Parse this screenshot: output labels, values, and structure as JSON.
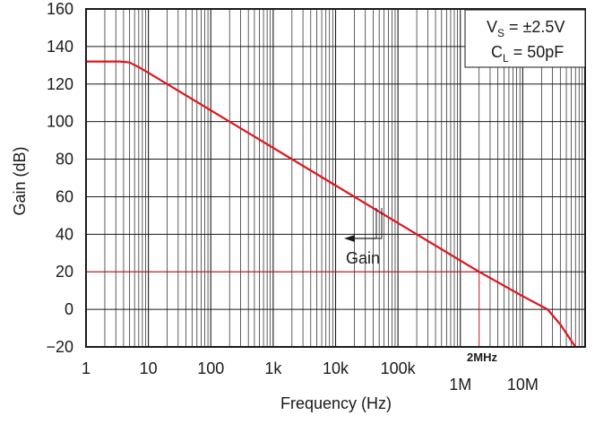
{
  "chart_data": {
    "type": "line",
    "xscale": "log",
    "xlim": [
      1,
      100000000
    ],
    "ylim": [
      -20,
      160
    ],
    "xlabel": "Frequency (Hz)",
    "ylabel": "Gain (dB)",
    "x_ticks": [
      {
        "value": 1,
        "label": "1"
      },
      {
        "value": 10,
        "label": "10"
      },
      {
        "value": 100,
        "label": "100"
      },
      {
        "value": 1000,
        "label": "1k"
      },
      {
        "value": 10000,
        "label": "10k"
      },
      {
        "value": 100000,
        "label": "100k"
      },
      {
        "value": 1000000,
        "label": "1M"
      },
      {
        "value": 10000000,
        "label": "10M"
      }
    ],
    "y_ticks": [
      {
        "value": 160,
        "label": "160"
      },
      {
        "value": 140,
        "label": "140"
      },
      {
        "value": 120,
        "label": "120"
      },
      {
        "value": 100,
        "label": "100"
      },
      {
        "value": 80,
        "label": "80"
      },
      {
        "value": 60,
        "label": "60"
      },
      {
        "value": 40,
        "label": "40"
      },
      {
        "value": 20,
        "label": "20"
      },
      {
        "value": 0,
        "label": "0"
      },
      {
        "value": -20,
        "label": "−20"
      }
    ],
    "grid": true,
    "series": [
      {
        "name": "Gain",
        "color": "#e0141e",
        "x": [
          1,
          3.5,
          5,
          7,
          10,
          100,
          1000,
          10000,
          100000,
          1000000,
          2000000,
          10000000,
          25000000,
          40000000,
          70000000
        ],
        "y": [
          132,
          132,
          131.5,
          129,
          126,
          106,
          86,
          66,
          46,
          26,
          20,
          7,
          0,
          -8,
          -20
        ]
      }
    ],
    "legend": {
      "position": "top-right",
      "line1_main": "V",
      "line1_sub": "S",
      "line1_rest": " = ±2.5V",
      "line2_main": "C",
      "line2_sub": "L",
      "line2_rest": " = 50pF"
    },
    "annotations": [
      {
        "text": "Gain",
        "arrow": "left",
        "points_to_x": 70000,
        "points_to_y": 44
      }
    ],
    "reference": {
      "y": 20,
      "x": 2000000,
      "label": "2MHz",
      "color": "#e0141e"
    }
  }
}
